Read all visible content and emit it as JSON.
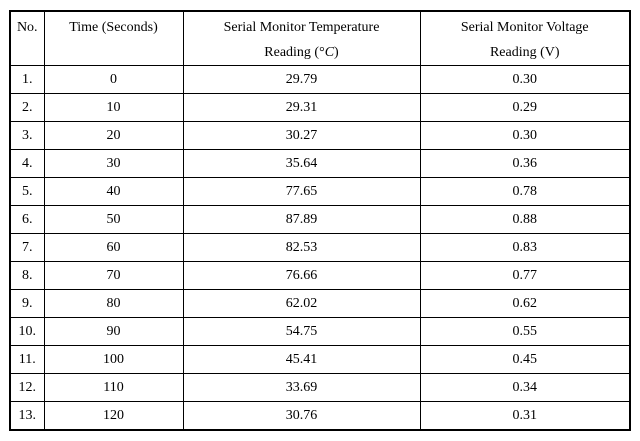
{
  "table": {
    "border_color": "#000000",
    "text_color": "#000000",
    "background_color": "#ffffff",
    "headers": {
      "no": "No.",
      "time": "Time (Seconds)",
      "temp_line1": "Serial Monitor Temperature",
      "temp_line2_prefix": "Reading (°",
      "temp_line2_italic": "C",
      "temp_line2_suffix": ")",
      "volt_line1": "Serial Monitor Voltage",
      "volt_line2": "Reading (V)"
    },
    "rows": [
      {
        "no": "1.",
        "time": "0",
        "temp": "29.79",
        "volt": "0.30"
      },
      {
        "no": "2.",
        "time": "10",
        "temp": "29.31",
        "volt": "0.29"
      },
      {
        "no": "3.",
        "time": "20",
        "temp": "30.27",
        "volt": "0.30"
      },
      {
        "no": "4.",
        "time": "30",
        "temp": "35.64",
        "volt": "0.36"
      },
      {
        "no": "5.",
        "time": "40",
        "temp": "77.65",
        "volt": "0.78"
      },
      {
        "no": "6.",
        "time": "50",
        "temp": "87.89",
        "volt": "0.88"
      },
      {
        "no": "7.",
        "time": "60",
        "temp": "82.53",
        "volt": "0.83"
      },
      {
        "no": "8.",
        "time": "70",
        "temp": "76.66",
        "volt": "0.77"
      },
      {
        "no": "9.",
        "time": "80",
        "temp": "62.02",
        "volt": "0.62"
      },
      {
        "no": "10.",
        "time": "90",
        "temp": "54.75",
        "volt": "0.55"
      },
      {
        "no": "11.",
        "time": "100",
        "temp": "45.41",
        "volt": "0.45"
      },
      {
        "no": "12.",
        "time": "110",
        "temp": "33.69",
        "volt": "0.34"
      },
      {
        "no": "13.",
        "time": "120",
        "temp": "30.76",
        "volt": "0.31"
      }
    ]
  }
}
